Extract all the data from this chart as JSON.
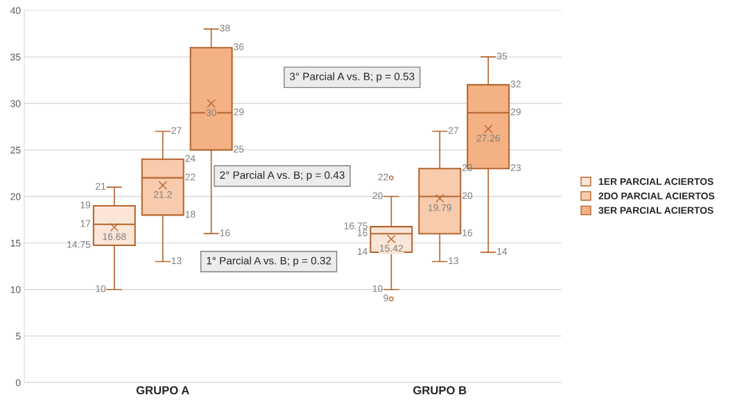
{
  "chart_data": {
    "type": "box",
    "categories": [
      "GRUPO A",
      "GRUPO B"
    ],
    "series": [
      {
        "name": "1ER PARCIAL ACIERTOS",
        "color": "#fbe5d6",
        "boxes": [
          {
            "low": 10,
            "q1": 14.75,
            "median": 17,
            "q3": 19,
            "high": 21,
            "mean": 16.68
          },
          {
            "low": 10,
            "q1": 14,
            "median": 16,
            "q3": 16.75,
            "high": 20,
            "mean": 15.42,
            "outliers": [
              22,
              9
            ]
          }
        ]
      },
      {
        "name": "2DO PARCIAL ACIERTOS",
        "color": "#f8cbad",
        "boxes": [
          {
            "low": 13,
            "q1": 18,
            "median": 22,
            "q3": 24,
            "high": 27,
            "mean": 21.2
          },
          {
            "low": 13,
            "q1": 16,
            "median": 20,
            "q3": 23,
            "high": 27,
            "mean": 19.79
          }
        ]
      },
      {
        "name": "3ER PARCIAL ACIERTOS",
        "color": "#f4b183",
        "boxes": [
          {
            "low": 16,
            "q1": 25,
            "median": 29,
            "q3": 36,
            "high": 38,
            "mean": 30
          },
          {
            "low": 14,
            "q1": 23,
            "median": 29,
            "q3": 32,
            "high": 35,
            "mean": 27.26
          }
        ]
      }
    ],
    "ylim": [
      0,
      40
    ],
    "yticks": [
      0,
      5,
      10,
      15,
      20,
      25,
      30,
      35,
      40
    ],
    "grid": "y",
    "legend": "right",
    "annotations": [
      "3° Parcial A vs. B; p = 0.53",
      "2° Parcial A vs. B; p = 0.43",
      "1° Parcial A vs. B; p = 0.32",
      "10",
      "14.75",
      "17",
      "19",
      "21",
      "16.68",
      "13",
      "18",
      "22",
      "24",
      "27",
      "21.2",
      "16",
      "25",
      "29",
      "36",
      "38",
      "30",
      "10",
      "14",
      "16",
      "16.75",
      "20",
      "15.42",
      "22",
      "9",
      "13",
      "16",
      "20",
      "23",
      "27",
      "19.79",
      "14",
      "23",
      "29",
      "32",
      "35",
      "27.26"
    ]
  }
}
